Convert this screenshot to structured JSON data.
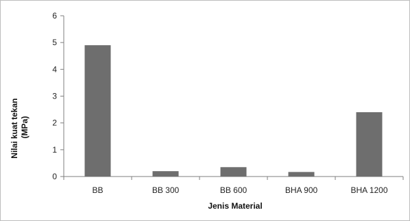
{
  "chart_data": {
    "type": "bar",
    "title": "",
    "xlabel": "Jenis Material",
    "ylabel": "Nilai kuat tekan (MPa)",
    "ylabel_lines": [
      "Nilai kuat tekan",
      "(MPa)"
    ],
    "categories": [
      "BB",
      "BB 300",
      "BB 600",
      "BHA 900",
      "BHA 1200"
    ],
    "values": [
      4.9,
      0.2,
      0.35,
      0.17,
      2.4
    ],
    "ylim": [
      0,
      6
    ],
    "yticks": [
      "0",
      "1",
      "2",
      "3",
      "4",
      "5",
      "6"
    ],
    "grid": false,
    "legend": "none",
    "bar_color": "#6e6e6e",
    "axis_color": "#7f7f7f"
  }
}
